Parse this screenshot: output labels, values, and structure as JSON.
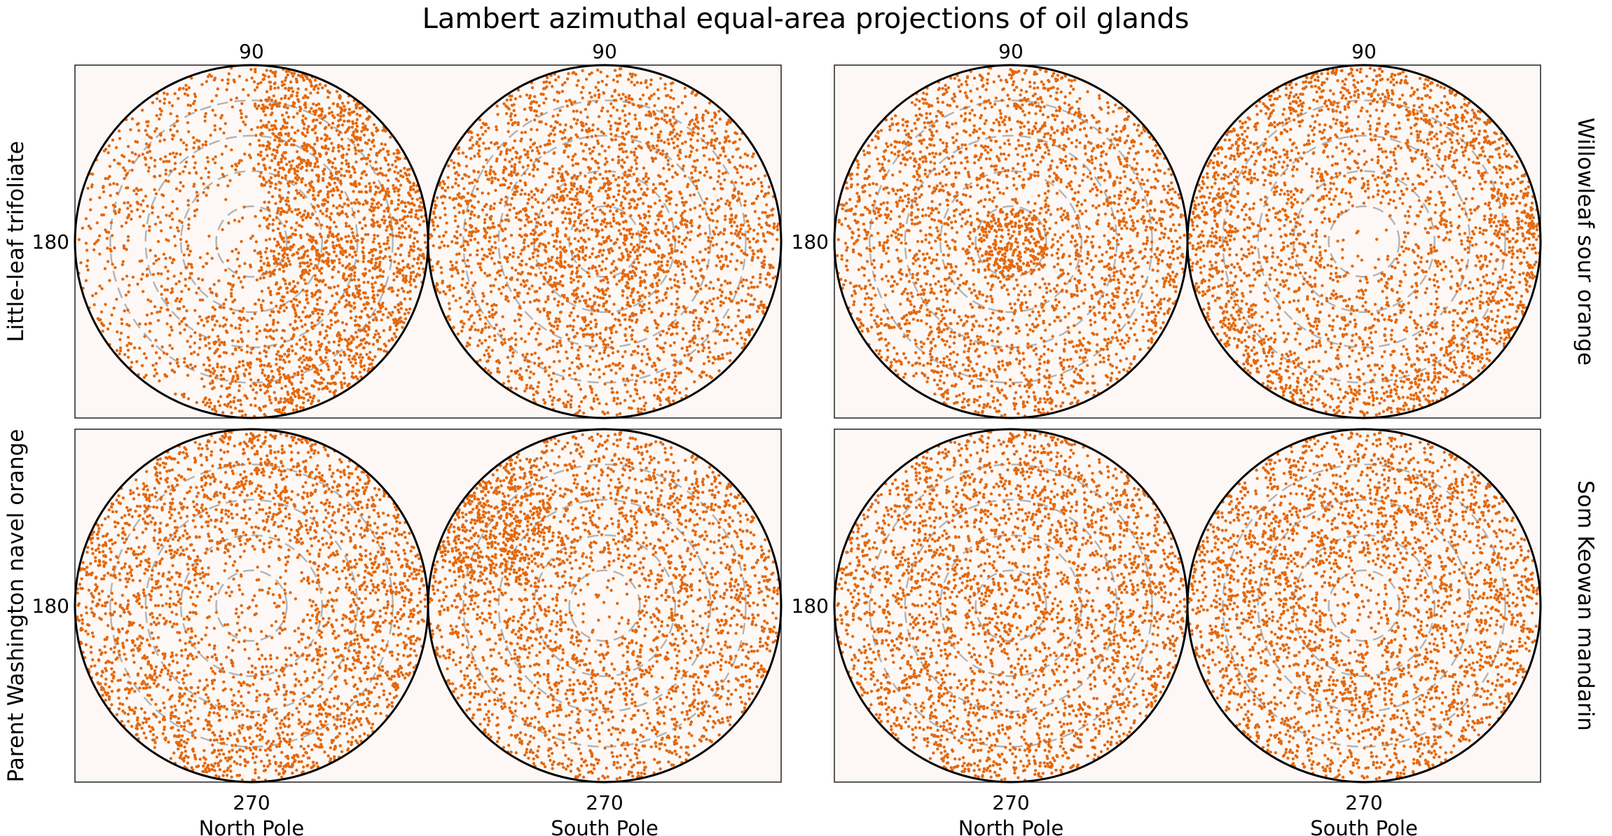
{
  "chart_data": {
    "type": "scatter",
    "title": "Lambert azimuthal equal-area projections of oil glands",
    "projection": "Lambert azimuthal equal-area",
    "marker_color": "#e3690f",
    "panel_background": "#fdf8f6",
    "grid_circle_color": "#b4b4b4",
    "grid": "dashed concentric circles",
    "tick_labels": {
      "top": "90",
      "left": "180",
      "bottom": "270"
    },
    "column_labels": [
      "North Pole",
      "South Pole"
    ],
    "panels": [
      {
        "row_label": "Little-leaf trifoliate",
        "label_side": "left",
        "hemispheres": [
          {
            "pole": "North Pole",
            "distribution": "dense crescent around the right and lower-right side of a sparse polar region"
          },
          {
            "pole": "South Pole",
            "distribution": "fairly uniform, moderately clustered around the pole"
          }
        ]
      },
      {
        "row_label": "Willowleaf sour orange",
        "label_side": "right",
        "hemispheres": [
          {
            "pole": "North Pole",
            "distribution": "dense cluster at the pole, uniform elsewhere"
          },
          {
            "pole": "South Pole",
            "distribution": "sparse pole, dense near the rim"
          }
        ]
      },
      {
        "row_label": "Parent Washington navel orange",
        "label_side": "left",
        "hemispheres": [
          {
            "pole": "North Pole",
            "distribution": "sparse pole, dense toward the rim"
          },
          {
            "pole": "South Pole",
            "distribution": "dense patch in the upper-left, sparse pole"
          }
        ]
      },
      {
        "row_label": "Som Keowan mandarin",
        "label_side": "right",
        "hemispheres": [
          {
            "pole": "North Pole",
            "distribution": "near-uniform"
          },
          {
            "pole": "South Pole",
            "distribution": "near-uniform with slightly sparse pole"
          }
        ]
      }
    ]
  }
}
